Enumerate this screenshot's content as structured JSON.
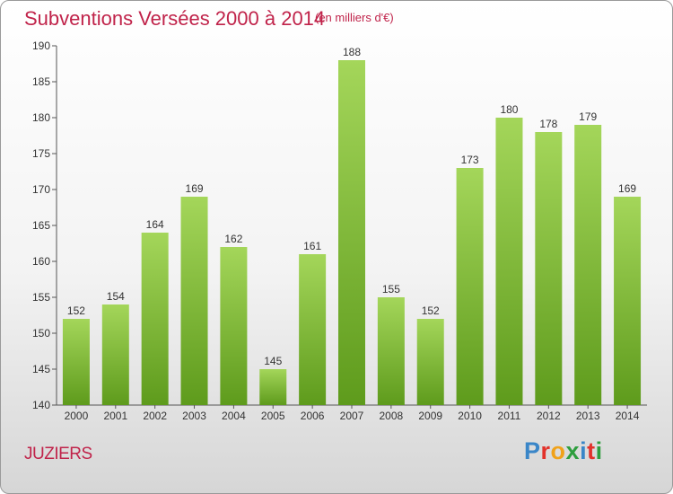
{
  "header": {
    "title": "Subventions Versées 2000 à 2014",
    "unit_note": "(en milliers d'€)"
  },
  "footer": {
    "place": "JUZIERS",
    "logo_letters": [
      "P",
      "r",
      "o",
      "x",
      "i",
      "t",
      "i"
    ],
    "logo_colors": [
      "#3a86c8",
      "#e2322b",
      "#f0a21a",
      "#2e9e3e",
      "#3a86c8",
      "#e2322b",
      "#2e9e3e"
    ]
  },
  "colors": {
    "bar_light": "#a4d65a",
    "bar_dark": "#5e9b1c",
    "title": "#c0234a"
  },
  "chart_data": {
    "type": "bar",
    "categories": [
      "2000",
      "2001",
      "2002",
      "2003",
      "2004",
      "2005",
      "2006",
      "2007",
      "2008",
      "2009",
      "2010",
      "2011",
      "2012",
      "2013",
      "2014"
    ],
    "values": [
      152,
      154,
      164,
      169,
      162,
      145,
      161,
      188,
      155,
      152,
      173,
      180,
      178,
      179,
      169
    ],
    "ylim": [
      140,
      190
    ],
    "yticks": [
      140,
      145,
      150,
      155,
      160,
      165,
      170,
      175,
      180,
      185,
      190
    ],
    "grid": false
  }
}
